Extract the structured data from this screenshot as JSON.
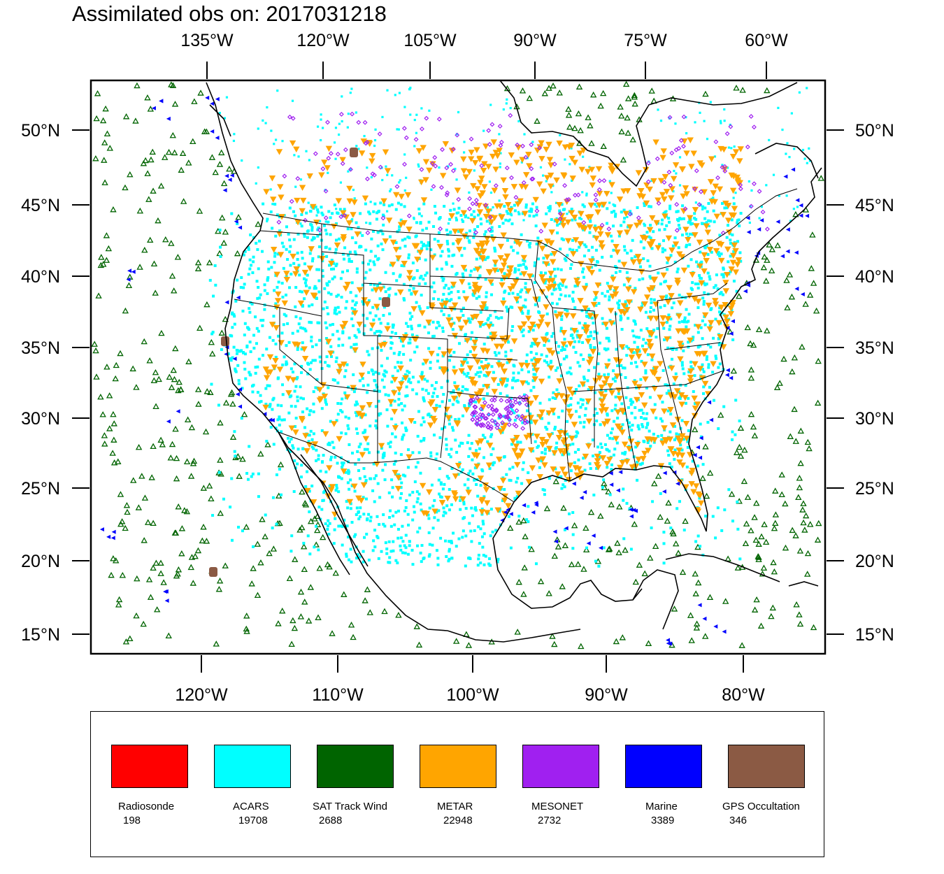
{
  "title": "Assimilated obs on: 2017031218",
  "map": {
    "top_lon_labels": [
      "135°W",
      "120°W",
      "105°W",
      "90°W",
      "75°W",
      "60°W"
    ],
    "bottom_lon_labels": [
      "120°W",
      "110°W",
      "100°W",
      "90°W",
      "80°W"
    ],
    "lat_labels": [
      "50°N",
      "45°N",
      "40°N",
      "35°N",
      "30°N",
      "25°N",
      "20°N",
      "15°N"
    ]
  },
  "legend": {
    "items": [
      {
        "label": "Radiosonde",
        "count": "198",
        "color": "#ff0000"
      },
      {
        "label": "ACARS",
        "count": "19708",
        "color": "#00ffff"
      },
      {
        "label": "SAT Track Wind",
        "count": "2688",
        "color": "#006400"
      },
      {
        "label": "METAR",
        "count": "22948",
        "color": "#ffa500"
      },
      {
        "label": "MESONET",
        "count": "2732",
        "color": "#a020f0"
      },
      {
        "label": "Marine",
        "count": "3389",
        "color": "#0000ff"
      },
      {
        "label": "GPS Occultation",
        "count": "346",
        "color": "#8b5a44"
      }
    ]
  }
}
